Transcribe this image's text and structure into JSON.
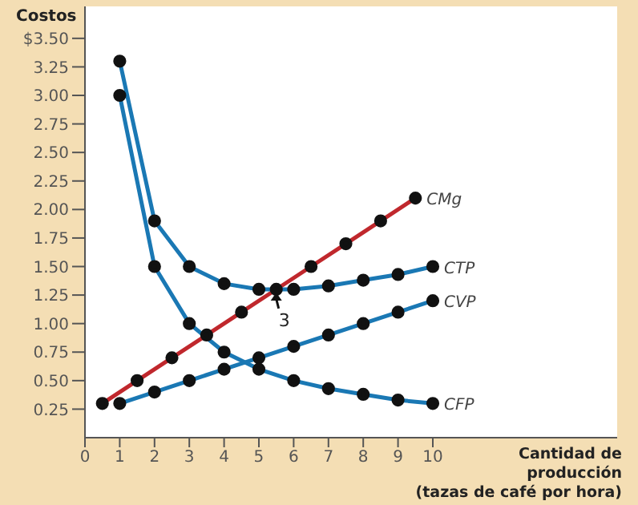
{
  "chart_data": {
    "type": "line",
    "xlabel": "Cantidad de\nproducción\n(tazas de café por hora)",
    "ylabel": "Costos",
    "xlim": [
      0,
      15.3
    ],
    "xticks": [
      0,
      1,
      2,
      3,
      4,
      5,
      6,
      7,
      8,
      9,
      10
    ],
    "ylim": [
      0,
      3.78
    ],
    "yticks": [
      {
        "value": 0.25,
        "label": "0.25"
      },
      {
        "value": 0.5,
        "label": "0.50"
      },
      {
        "value": 0.75,
        "label": "0.75"
      },
      {
        "value": 1,
        "label": "1.00"
      },
      {
        "value": 1.25,
        "label": "1.25"
      },
      {
        "value": 1.5,
        "label": "1.50"
      },
      {
        "value": 1.75,
        "label": "1.75"
      },
      {
        "value": 2,
        "label": "2.00"
      },
      {
        "value": 2.25,
        "label": "2.25"
      },
      {
        "value": 2.5,
        "label": "2.50"
      },
      {
        "value": 2.75,
        "label": "2.75"
      },
      {
        "value": 3,
        "label": "3.00"
      },
      {
        "value": 3.25,
        "label": "3.25"
      },
      {
        "value": 3.5,
        "label": "$3.50"
      }
    ],
    "marker": "circle",
    "grid": false,
    "legend": false,
    "series": [
      {
        "name": "CMg",
        "color": "#c0282d",
        "x": [
          0.5,
          1.5,
          2.5,
          3.5,
          4.5,
          5.5,
          6.5,
          7.5,
          8.5,
          9.5
        ],
        "values": [
          0.3,
          0.5,
          0.7,
          0.9,
          1.1,
          1.3,
          1.5,
          1.7,
          1.9,
          2.1
        ]
      },
      {
        "name": "CTP",
        "color": "#1a78b4",
        "x": [
          1,
          2,
          3,
          4,
          5,
          6,
          7,
          8,
          9,
          10
        ],
        "values": [
          3.3,
          1.9,
          1.5,
          1.35,
          1.3,
          1.3,
          1.33,
          1.38,
          1.43,
          1.5
        ]
      },
      {
        "name": "CVP",
        "color": "#1a78b4",
        "x": [
          1,
          2,
          3,
          4,
          5,
          6,
          7,
          8,
          9,
          10
        ],
        "values": [
          0.3,
          0.4,
          0.5,
          0.6,
          0.7,
          0.8,
          0.9,
          1,
          1.1,
          1.2
        ]
      },
      {
        "name": "CFP",
        "color": "#1a78b4",
        "x": [
          1,
          2,
          3,
          4,
          5,
          6,
          7,
          8,
          9,
          10
        ],
        "values": [
          3,
          1.5,
          1,
          0.75,
          0.6,
          0.5,
          0.43,
          0.38,
          0.33,
          0.3
        ]
      }
    ],
    "annotations": [
      {
        "text": "3",
        "x": 5.5,
        "y": 1.3
      }
    ]
  }
}
